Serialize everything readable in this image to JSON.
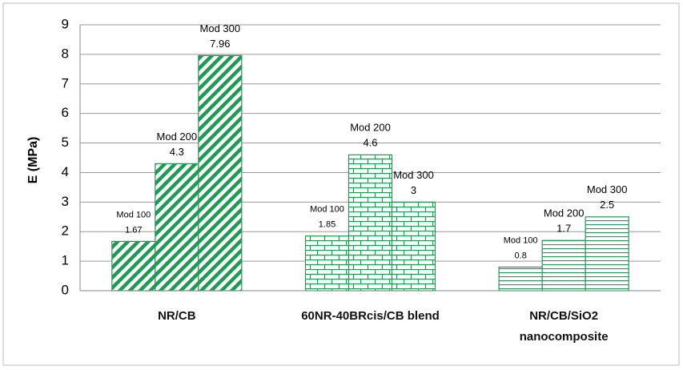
{
  "chart_data": {
    "type": "bar",
    "y_label": "E (MPa)",
    "categories": [
      "NR/CB",
      "60NR-40BRcis/CB blend",
      "NR/CB/SiO2\nnanocomposite"
    ],
    "series": [
      {
        "name": "Mod 100",
        "values": [
          1.67,
          1.85,
          0.8
        ]
      },
      {
        "name": "Mod 200",
        "values": [
          4.3,
          4.6,
          1.7
        ]
      },
      {
        "name": "Mod 300",
        "values": [
          7.96,
          3,
          2.5
        ]
      }
    ],
    "color": "#1e9a55",
    "patterns": [
      "diagonal",
      "brick",
      "horizontal"
    ],
    "ylim": [
      0,
      9
    ],
    "yticks": [
      0,
      1,
      2,
      3,
      4,
      5,
      6,
      7,
      8,
      9
    ],
    "grid": true
  }
}
